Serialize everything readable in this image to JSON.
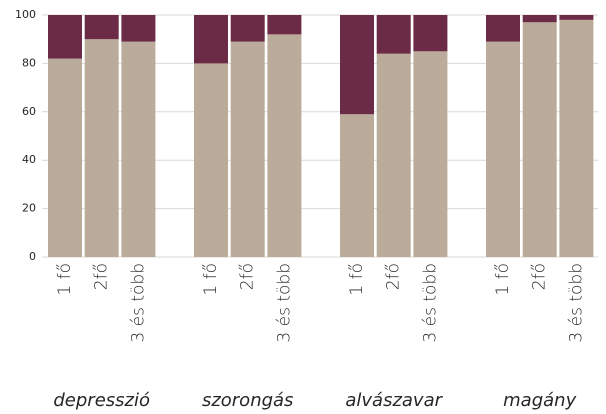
{
  "chart_data": {
    "type": "bar",
    "stacked": true,
    "groups": [
      "depresszió",
      "szorongás",
      "alvászavar",
      "magány"
    ],
    "categories": [
      "1 fő",
      "2fő",
      "3 és több",
      "1 fő",
      "2fő",
      "3 és több",
      "1 fő",
      "2fő",
      "3 és több",
      "1 fő",
      "2fő",
      "3 és több"
    ],
    "series": [
      {
        "color": "#bbab9b",
        "values": [
          82,
          90,
          89,
          80,
          89,
          92,
          59,
          84,
          85,
          89,
          97,
          98
        ]
      },
      {
        "color": "#6b2a45",
        "values": [
          18,
          10,
          11,
          20,
          11,
          8,
          41,
          16,
          15,
          11,
          3,
          2
        ]
      }
    ],
    "ylim": [
      0,
      100
    ],
    "yticks": [
      0,
      20,
      40,
      60,
      80,
      100
    ],
    "grid": true
  }
}
